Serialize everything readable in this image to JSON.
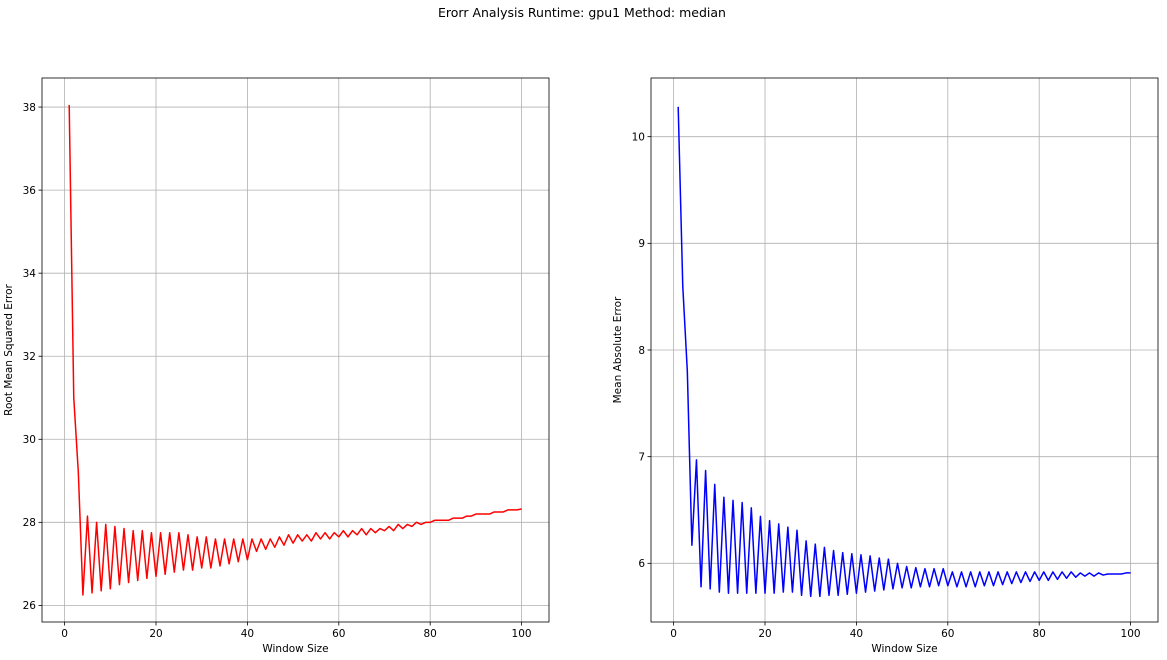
{
  "figure": {
    "title": "Erorr Analysis Runtime: gpu1 Method: median"
  },
  "chart_data": [
    {
      "type": "line",
      "xlabel": "Window Size",
      "ylabel": "Root Mean Squared Error",
      "xlim": [
        -4.95,
        106.0
      ],
      "ylim": [
        25.6,
        38.7
      ],
      "xticks": [
        0,
        20,
        40,
        60,
        80,
        100
      ],
      "yticks": [
        26,
        28,
        30,
        32,
        34,
        36,
        38
      ],
      "grid": true,
      "series": [
        {
          "color": "#ff0000",
          "x": [
            1,
            2,
            3,
            4,
            5,
            6,
            7,
            8,
            9,
            10,
            11,
            12,
            13,
            14,
            15,
            16,
            17,
            18,
            19,
            20,
            21,
            22,
            23,
            24,
            25,
            26,
            27,
            28,
            29,
            30,
            31,
            32,
            33,
            34,
            35,
            36,
            37,
            38,
            39,
            40,
            41,
            42,
            43,
            44,
            45,
            46,
            47,
            48,
            49,
            50,
            51,
            52,
            53,
            54,
            55,
            56,
            57,
            58,
            59,
            60,
            61,
            62,
            63,
            64,
            65,
            66,
            67,
            68,
            69,
            70,
            71,
            72,
            73,
            74,
            75,
            76,
            77,
            78,
            79,
            80,
            81,
            82,
            83,
            84,
            85,
            86,
            87,
            88,
            89,
            90,
            91,
            92,
            93,
            94,
            95,
            96,
            97,
            98,
            99,
            100
          ],
          "values": [
            38.05,
            31.0,
            29.2,
            26.25,
            28.15,
            26.3,
            28.0,
            26.35,
            27.95,
            26.4,
            27.9,
            26.5,
            27.85,
            26.55,
            27.8,
            26.6,
            27.8,
            26.65,
            27.75,
            26.7,
            27.75,
            26.75,
            27.75,
            26.8,
            27.75,
            26.85,
            27.7,
            26.85,
            27.65,
            26.9,
            27.65,
            26.9,
            27.6,
            26.95,
            27.6,
            27.0,
            27.6,
            27.05,
            27.6,
            27.1,
            27.6,
            27.3,
            27.6,
            27.35,
            27.6,
            27.4,
            27.65,
            27.45,
            27.7,
            27.5,
            27.7,
            27.55,
            27.7,
            27.55,
            27.75,
            27.6,
            27.75,
            27.6,
            27.75,
            27.65,
            27.8,
            27.65,
            27.8,
            27.7,
            27.85,
            27.7,
            27.85,
            27.75,
            27.85,
            27.8,
            27.9,
            27.8,
            27.95,
            27.85,
            27.95,
            27.9,
            28.0,
            27.95,
            28.0,
            28.0,
            28.05,
            28.05,
            28.05,
            28.05,
            28.1,
            28.1,
            28.1,
            28.15,
            28.15,
            28.2,
            28.2,
            28.2,
            28.2,
            28.25,
            28.25,
            28.25,
            28.3,
            28.3,
            28.3,
            28.32
          ]
        }
      ]
    },
    {
      "type": "line",
      "xlabel": "Window Size",
      "ylabel": "Mean Absolute Error",
      "xlim": [
        -4.95,
        106.0
      ],
      "ylim": [
        5.45,
        10.55
      ],
      "xticks": [
        0,
        20,
        40,
        60,
        80,
        100
      ],
      "yticks": [
        6,
        7,
        8,
        9,
        10
      ],
      "grid": true,
      "series": [
        {
          "color": "#0000ff",
          "x": [
            1,
            2,
            3,
            4,
            5,
            6,
            7,
            8,
            9,
            10,
            11,
            12,
            13,
            14,
            15,
            16,
            17,
            18,
            19,
            20,
            21,
            22,
            23,
            24,
            25,
            26,
            27,
            28,
            29,
            30,
            31,
            32,
            33,
            34,
            35,
            36,
            37,
            38,
            39,
            40,
            41,
            42,
            43,
            44,
            45,
            46,
            47,
            48,
            49,
            50,
            51,
            52,
            53,
            54,
            55,
            56,
            57,
            58,
            59,
            60,
            61,
            62,
            63,
            64,
            65,
            66,
            67,
            68,
            69,
            70,
            71,
            72,
            73,
            74,
            75,
            76,
            77,
            78,
            79,
            80,
            81,
            82,
            83,
            84,
            85,
            86,
            87,
            88,
            89,
            90,
            91,
            92,
            93,
            94,
            95,
            96,
            97,
            98,
            99,
            100
          ],
          "values": [
            10.28,
            8.6,
            7.8,
            6.17,
            6.97,
            5.78,
            6.87,
            5.76,
            6.74,
            5.73,
            6.62,
            5.72,
            6.59,
            5.72,
            6.57,
            5.72,
            6.52,
            5.72,
            6.44,
            5.72,
            6.4,
            5.72,
            6.37,
            5.73,
            6.34,
            5.73,
            6.31,
            5.7,
            6.21,
            5.69,
            6.18,
            5.69,
            6.15,
            5.7,
            6.12,
            5.7,
            6.1,
            5.71,
            6.09,
            5.72,
            6.08,
            5.73,
            6.07,
            5.74,
            6.05,
            5.75,
            6.04,
            5.76,
            6.0,
            5.77,
            5.97,
            5.77,
            5.96,
            5.78,
            5.95,
            5.78,
            5.95,
            5.79,
            5.95,
            5.79,
            5.92,
            5.78,
            5.92,
            5.78,
            5.92,
            5.78,
            5.92,
            5.79,
            5.92,
            5.79,
            5.92,
            5.8,
            5.92,
            5.81,
            5.92,
            5.82,
            5.92,
            5.83,
            5.92,
            5.84,
            5.92,
            5.84,
            5.92,
            5.85,
            5.92,
            5.86,
            5.92,
            5.87,
            5.91,
            5.88,
            5.91,
            5.88,
            5.91,
            5.89,
            5.9,
            5.9,
            5.9,
            5.9,
            5.91,
            5.91
          ]
        }
      ]
    }
  ]
}
